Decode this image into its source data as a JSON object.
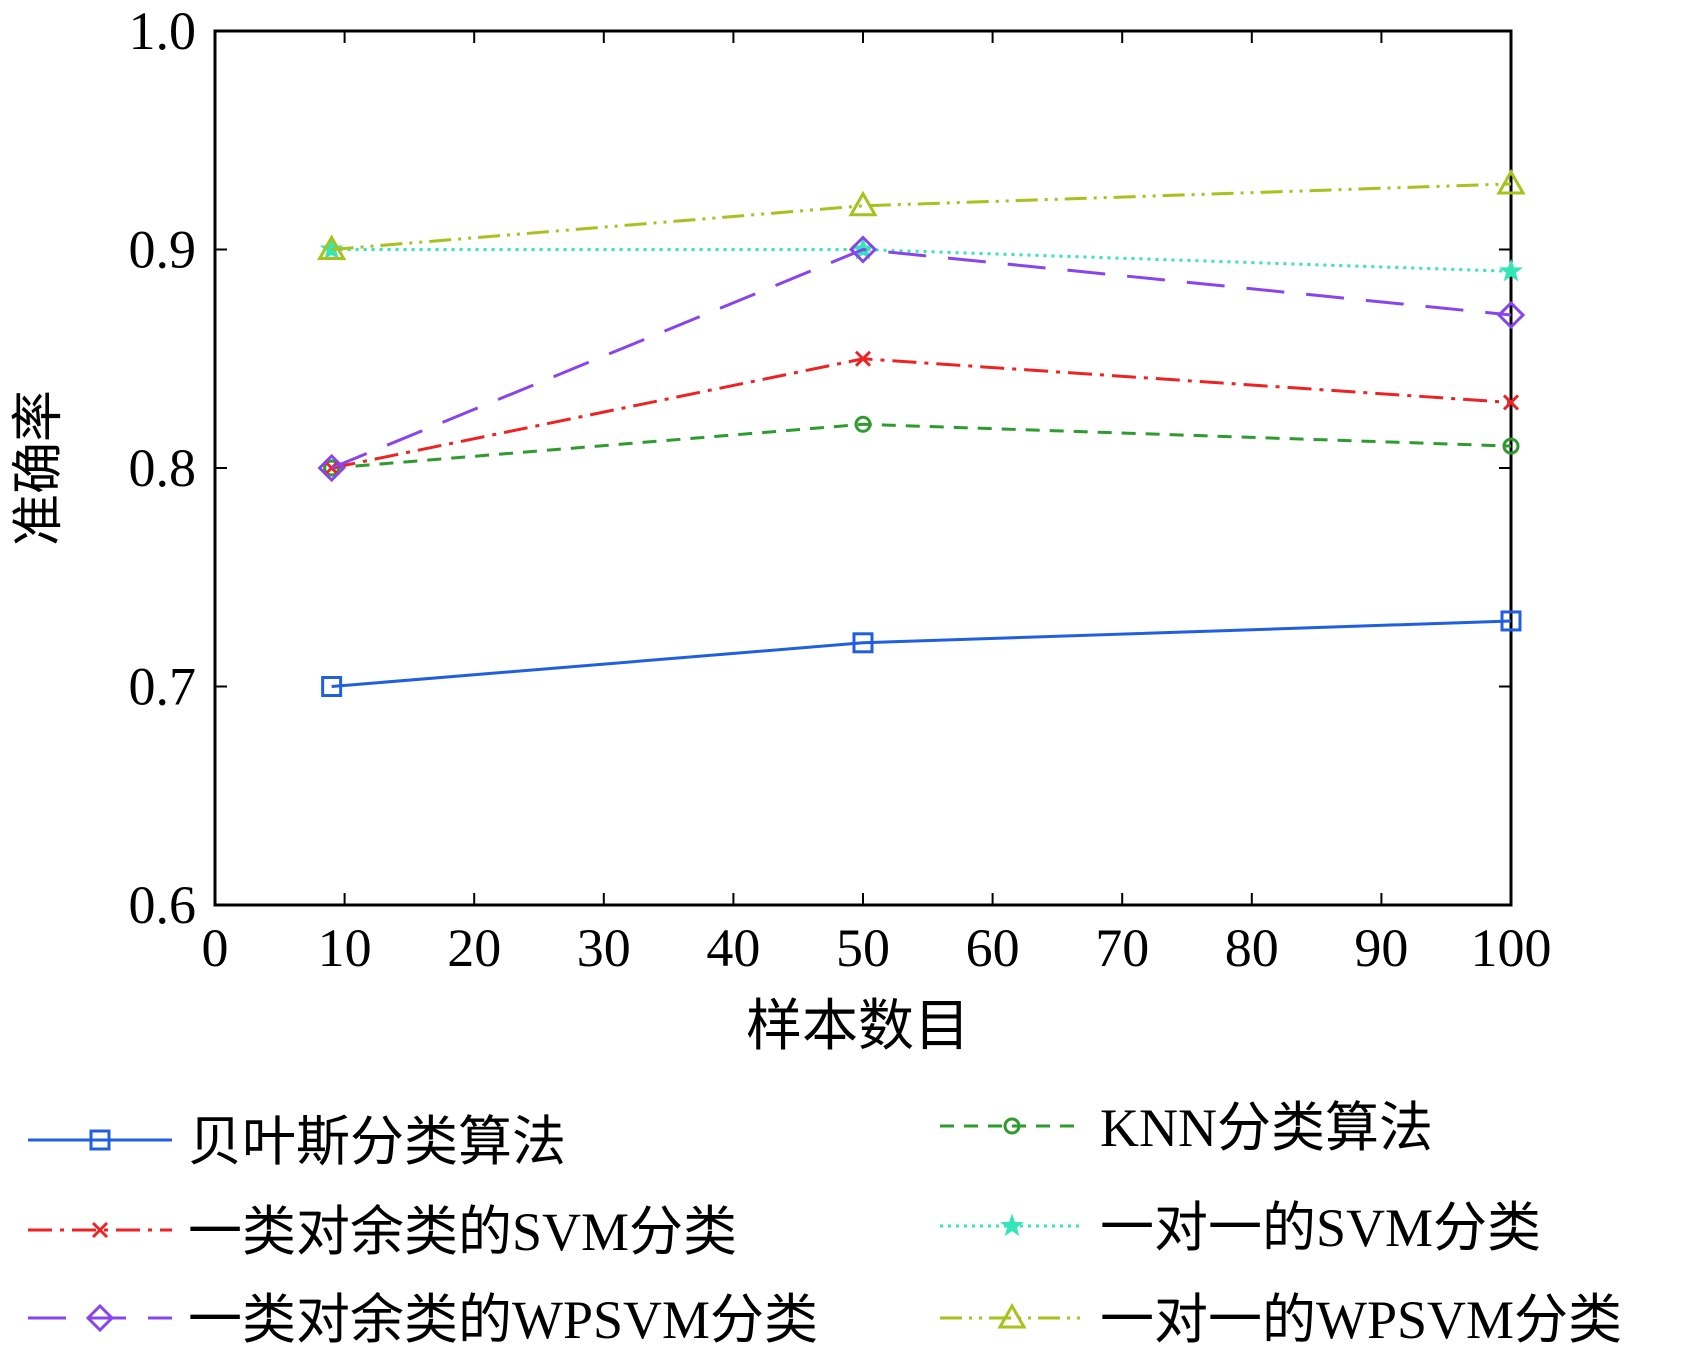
{
  "chart_data": {
    "type": "line",
    "title": "",
    "xlabel": "样本数目",
    "ylabel": "准确率",
    "xlim": [
      0,
      100
    ],
    "ylim": [
      0.6,
      1.0
    ],
    "xticks": [
      "0",
      "10",
      "20",
      "30",
      "40",
      "50",
      "60",
      "70",
      "80",
      "90",
      "100"
    ],
    "yticks": [
      "0.6",
      "0.7",
      "0.8",
      "0.9",
      "1.0"
    ],
    "grid": false,
    "legend_position": "bottom",
    "x": [
      9,
      50,
      100
    ],
    "series": [
      {
        "name": "贝叶斯分类算法",
        "values": [
          0.7,
          0.72,
          0.73
        ],
        "color": "#1f5fe0",
        "dash": "solid",
        "marker": "square"
      },
      {
        "name": "KNN分类算法",
        "values": [
          0.8,
          0.82,
          0.81
        ],
        "color": "#2e9b2e",
        "dash": "dashed",
        "marker": "circle"
      },
      {
        "name": "一类对余类的SVM分类",
        "values": [
          0.8,
          0.85,
          0.83
        ],
        "color": "#ee2222",
        "dash": "dashdot",
        "marker": "x"
      },
      {
        "name": "一对一的SVM分类",
        "values": [
          0.9,
          0.9,
          0.89
        ],
        "color": "#33e6b8",
        "dash": "dotted",
        "marker": "star"
      },
      {
        "name": "一类对余类的WPSVM分类",
        "values": [
          0.8,
          0.9,
          0.87
        ],
        "color": "#8a44ee",
        "dash": "longdash",
        "marker": "diamond"
      },
      {
        "name": "一对一的WPSVM分类",
        "values": [
          0.9,
          0.92,
          0.93
        ],
        "color": "#a6c21d",
        "dash": "dashdotdot",
        "marker": "triangle"
      }
    ]
  }
}
